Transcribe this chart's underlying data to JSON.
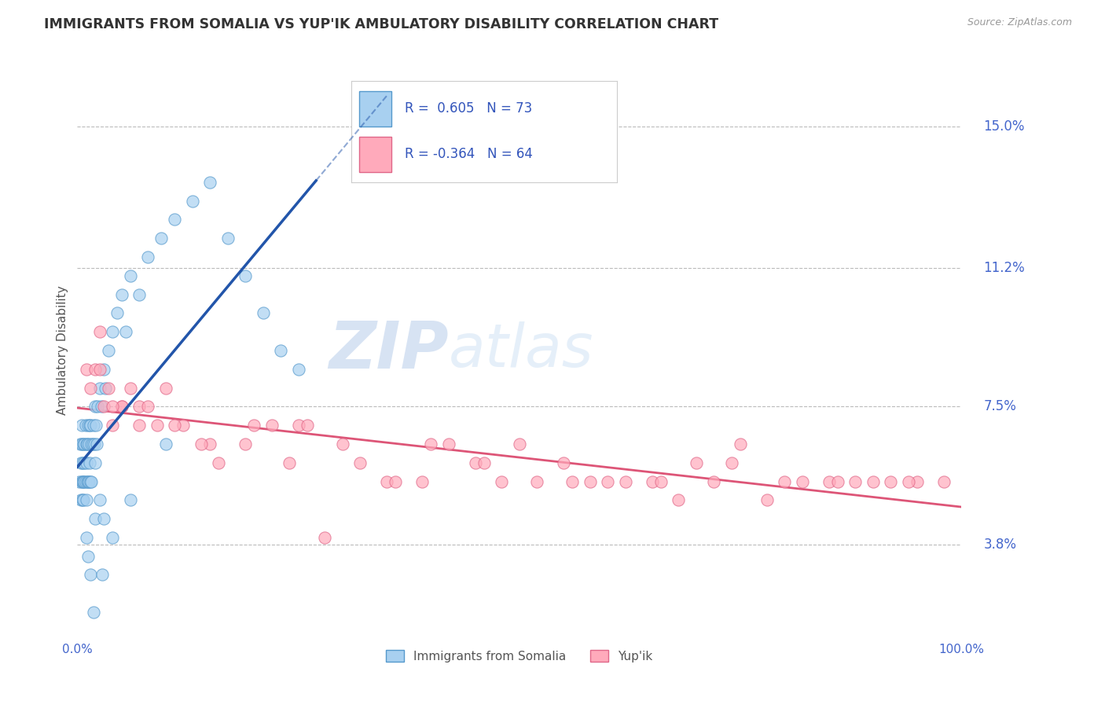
{
  "title": "IMMIGRANTS FROM SOMALIA VS YUP'IK AMBULATORY DISABILITY CORRELATION CHART",
  "source_text": "Source: ZipAtlas.com",
  "ylabel": "Ambulatory Disability",
  "xlim": [
    0.0,
    100.0
  ],
  "ylim": [
    1.5,
    16.5
  ],
  "yticks": [
    3.8,
    7.5,
    11.2,
    15.0
  ],
  "ytick_labels": [
    "3.8%",
    "7.5%",
    "11.2%",
    "15.0%"
  ],
  "xtick_labels": [
    "0.0%",
    "100.0%"
  ],
  "xticks": [
    0.0,
    100.0
  ],
  "series1_color": "#a8d0f0",
  "series1_edge": "#5599cc",
  "series2_color": "#ffaabb",
  "series2_edge": "#e06688",
  "trend1_color": "#2255aa",
  "trend2_color": "#dd5577",
  "R1": 0.605,
  "N1": 73,
  "R2": -0.364,
  "N2": 64,
  "legend_label1": "Immigrants from Somalia",
  "legend_label2": "Yup'ik",
  "watermark1": "ZIP",
  "watermark2": "atlas",
  "background_color": "#ffffff",
  "grid_color": "#bbbbbb",
  "axis_label_color": "#4466cc",
  "legend_text_color": "#3355bb",
  "series1_x": [
    0.2,
    0.3,
    0.4,
    0.4,
    0.5,
    0.5,
    0.5,
    0.6,
    0.6,
    0.6,
    0.7,
    0.7,
    0.7,
    0.8,
    0.8,
    0.8,
    0.9,
    0.9,
    1.0,
    1.0,
    1.0,
    1.1,
    1.1,
    1.2,
    1.2,
    1.3,
    1.3,
    1.4,
    1.4,
    1.5,
    1.5,
    1.6,
    1.6,
    1.7,
    1.8,
    1.9,
    2.0,
    2.0,
    2.1,
    2.2,
    2.3,
    2.5,
    2.7,
    3.0,
    3.2,
    3.5,
    4.0,
    4.5,
    5.0,
    5.5,
    6.0,
    7.0,
    8.0,
    9.5,
    11.0,
    13.0,
    15.0,
    17.0,
    19.0,
    21.0,
    23.0,
    25.0,
    1.0,
    1.2,
    1.5,
    2.0,
    2.5,
    3.0,
    1.8,
    2.8,
    4.0,
    6.0,
    10.0
  ],
  "series1_y": [
    5.5,
    6.5,
    6.0,
    5.0,
    6.5,
    5.5,
    7.0,
    5.5,
    6.0,
    5.0,
    5.5,
    6.5,
    5.0,
    6.0,
    5.5,
    6.5,
    7.0,
    5.5,
    6.0,
    5.0,
    6.5,
    6.5,
    5.5,
    7.0,
    5.5,
    6.5,
    5.5,
    7.0,
    6.0,
    5.5,
    7.0,
    6.5,
    5.5,
    6.5,
    7.0,
    6.5,
    7.5,
    6.0,
    7.0,
    6.5,
    7.5,
    8.0,
    7.5,
    8.5,
    8.0,
    9.0,
    9.5,
    10.0,
    10.5,
    9.5,
    11.0,
    10.5,
    11.5,
    12.0,
    12.5,
    13.0,
    13.5,
    12.0,
    11.0,
    10.0,
    9.0,
    8.5,
    4.0,
    3.5,
    3.0,
    4.5,
    5.0,
    4.5,
    2.0,
    3.0,
    4.0,
    5.0,
    6.5
  ],
  "series2_x": [
    1.0,
    1.5,
    2.0,
    2.5,
    3.0,
    3.5,
    4.0,
    5.0,
    6.0,
    7.0,
    8.0,
    10.0,
    12.0,
    15.0,
    20.0,
    25.0,
    30.0,
    35.0,
    40.0,
    45.0,
    50.0,
    55.0,
    60.0,
    65.0,
    70.0,
    75.0,
    80.0,
    85.0,
    90.0,
    95.0,
    98.0,
    2.5,
    5.0,
    9.0,
    16.0,
    26.0,
    42.0,
    56.0,
    68.0,
    82.0,
    94.0,
    4.0,
    11.0,
    22.0,
    36.0,
    52.0,
    66.0,
    78.0,
    7.0,
    32.0,
    58.0,
    88.0,
    14.0,
    46.0,
    74.0,
    19.0,
    39.0,
    62.0,
    86.0,
    24.0,
    48.0,
    72.0,
    92.0,
    28.0
  ],
  "series2_y": [
    8.5,
    8.0,
    8.5,
    9.5,
    7.5,
    8.0,
    7.0,
    7.5,
    8.0,
    7.5,
    7.5,
    8.0,
    7.0,
    6.5,
    7.0,
    7.0,
    6.5,
    5.5,
    6.5,
    6.0,
    6.5,
    6.0,
    5.5,
    5.5,
    6.0,
    6.5,
    5.5,
    5.5,
    5.5,
    5.5,
    5.5,
    8.5,
    7.5,
    7.0,
    6.0,
    7.0,
    6.5,
    5.5,
    5.0,
    5.5,
    5.5,
    7.5,
    7.0,
    7.0,
    5.5,
    5.5,
    5.5,
    5.0,
    7.0,
    6.0,
    5.5,
    5.5,
    6.5,
    6.0,
    6.0,
    6.5,
    5.5,
    5.5,
    5.5,
    6.0,
    5.5,
    5.5,
    5.5,
    4.0
  ],
  "trend1_x_end": 27.0,
  "trend2_x_start": 0.0,
  "trend2_x_end": 100.0
}
